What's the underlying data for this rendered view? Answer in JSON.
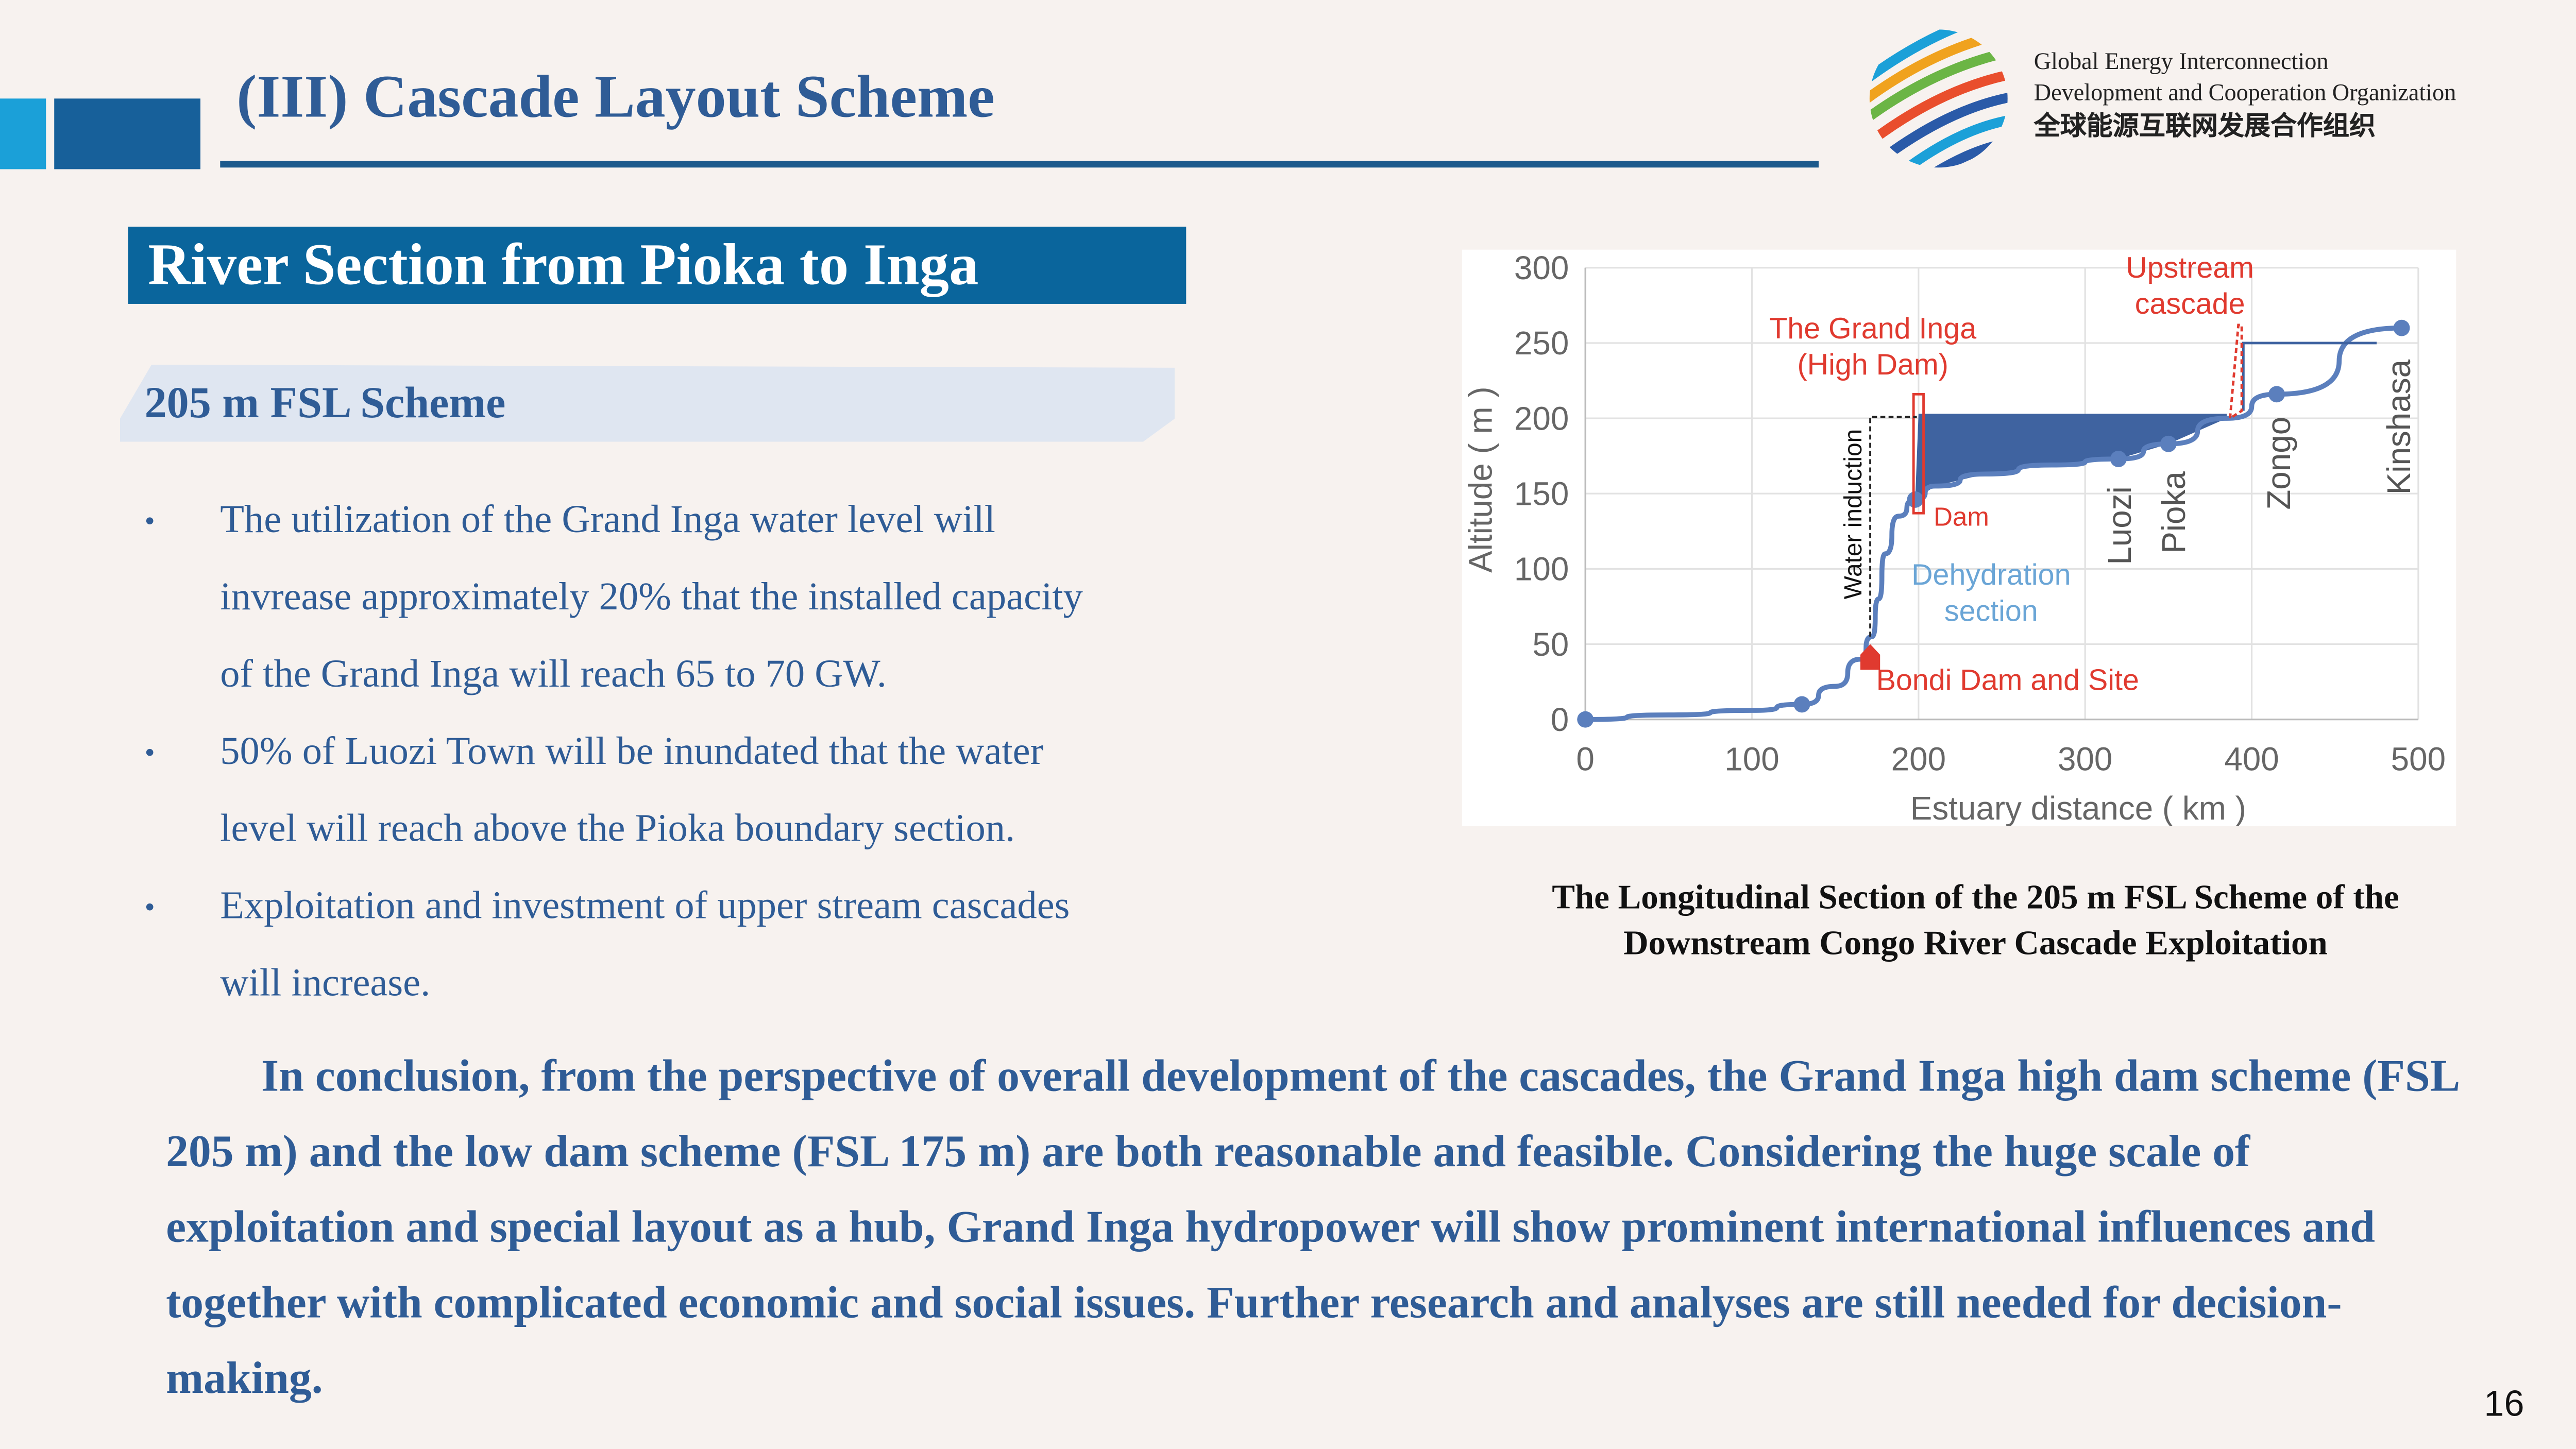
{
  "header": {
    "title": "(III) Cascade Layout Scheme",
    "org_en_line1": "Global Energy Interconnection",
    "org_en_line2": "Development and Cooperation Organization",
    "org_cn": "全球能源互联网发展合作组织",
    "logo_colors": [
      "#1ba0d8",
      "#2a5aa8",
      "#f0a21e",
      "#6bb545",
      "#e94e2d"
    ]
  },
  "section": {
    "title": "River Section from Pioka to Inga",
    "subtitle": "205 m FSL Scheme"
  },
  "bullets": [
    {
      "lines": [
        "The utilization of the Grand Inga water level will",
        "invrease approximately 20% that the installed capacity",
        "of the Grand Inga will reach 65 to 70 GW."
      ]
    },
    {
      "lines": [
        "50% of Luozi Town will be inundated that the water",
        "level will reach above the Pioka boundary section."
      ]
    },
    {
      "lines": [
        "Exploitation and investment of upper stream cascades",
        "will increase."
      ]
    }
  ],
  "caption": {
    "line1": "The Longitudinal Section of the 205 m FSL Scheme of the",
    "line2": "Downstream Congo River Cascade Exploitation"
  },
  "conclusion": "In conclusion, from the perspective of overall development of the cascades, the Grand Inga high dam scheme (FSL 205 m) and the low dam scheme (FSL 175 m) are both reasonable and feasible. Considering the huge scale of exploitation and special layout as a hub, Grand Inga hydropower will show prominent international influences and together with complicated economic and social issues. Further research and analyses are still needed for decision-making.",
  "page_number": "16",
  "chart_data": {
    "type": "line",
    "xlabel": "Estuary distance ( km )",
    "ylabel": "Altitude ( m )",
    "xlim": [
      0,
      500
    ],
    "ylim": [
      0,
      300
    ],
    "xticks": [
      "0",
      "100",
      "200",
      "300",
      "400",
      "500"
    ],
    "yticks": [
      "0",
      "50",
      "100",
      "150",
      "200",
      "250",
      "300"
    ],
    "grid": true,
    "colors": {
      "profile": "#5b7fbd",
      "reservoir": "#3f63a0",
      "annotation": "#e03a2f",
      "dehydration": "#6aa5d6"
    },
    "profile": {
      "x": [
        0,
        50,
        100,
        130,
        150,
        165,
        172,
        176,
        180,
        188,
        198,
        210,
        240,
        280,
        320,
        350,
        385,
        415,
        490
      ],
      "y": [
        0,
        3,
        6,
        10,
        22,
        40,
        55,
        80,
        110,
        135,
        146,
        155,
        163,
        169,
        173,
        183,
        200,
        216,
        260
      ]
    },
    "markers": [
      {
        "x": 0,
        "y": 0
      },
      {
        "x": 130,
        "y": 10
      },
      {
        "x": 198,
        "y": 146
      },
      {
        "x": 320,
        "y": 173
      },
      {
        "x": 350,
        "y": 183
      },
      {
        "x": 415,
        "y": 216
      },
      {
        "x": 490,
        "y": 260
      }
    ],
    "reservoir_level": 203,
    "upstream_level": 250,
    "annotations": {
      "grand_inga_1": "The Grand Inga",
      "grand_inga_2": "(High Dam)",
      "upstream_1": "Upstream",
      "upstream_2": "cascade",
      "dam": "Dam",
      "dehydration_1": "Dehydration",
      "dehydration_2": "section",
      "bondi": "Bondi Dam and Site",
      "water_induction": "Water induction",
      "luozi": "Luozi",
      "pioka": "Pioka",
      "zongo": "Zongo",
      "kinshasa": "Kinshasa"
    }
  }
}
